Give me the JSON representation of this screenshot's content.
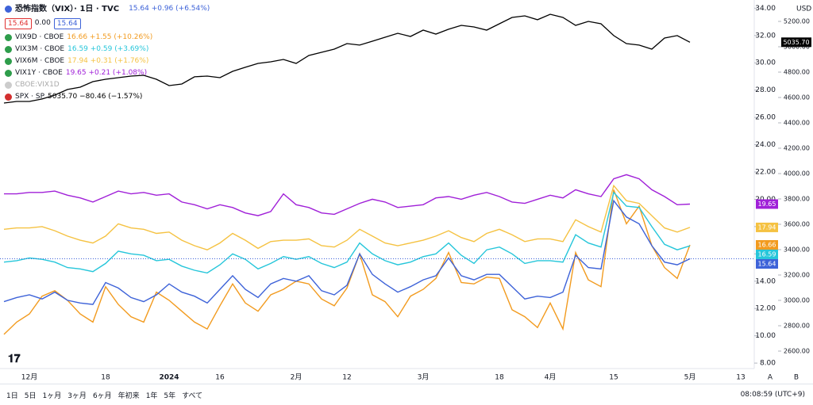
{
  "header": {
    "title": "恐怖指数（VIX）· 1日 · TVC",
    "quote": "15.64 +0.96 (+6.54%)",
    "bid": "15.64",
    "spread": "0.00",
    "ask": "15.64",
    "hidden_series": "CBOE:VIX1D"
  },
  "currency": "USD",
  "axis_buttons": [
    "A",
    "B"
  ],
  "range_buttons": [
    "1日",
    "5日",
    "1ヶ月",
    "3ヶ月",
    "6ヶ月",
    "年初来",
    "1年",
    "5年",
    "すべて"
  ],
  "clock": "08:08:59 (UTC+9)",
  "chart_data": {
    "type": "line",
    "categories": [
      null,
      null,
      "12月",
      null,
      null,
      null,
      null,
      null,
      "18",
      null,
      null,
      null,
      null,
      "2024",
      null,
      null,
      null,
      "16",
      null,
      null,
      null,
      null,
      null,
      "2月",
      null,
      null,
      null,
      "12",
      null,
      null,
      null,
      null,
      null,
      "3月",
      null,
      null,
      null,
      null,
      null,
      "18",
      null,
      null,
      null,
      "4月",
      null,
      null,
      null,
      null,
      "15",
      null,
      null,
      null,
      null,
      null,
      "5月",
      null,
      null,
      null,
      "13"
    ],
    "ylim": [
      7.6,
      34.6
    ],
    "yticks": [
      {
        "value": 8,
        "label": "8.00"
      },
      {
        "value": 10,
        "label": "10.00"
      },
      {
        "value": 12,
        "label": "12.00"
      },
      {
        "value": 14,
        "label": "14.00"
      },
      {
        "value": 16,
        "label": "16.00"
      },
      {
        "value": 18,
        "label": "18.00"
      },
      {
        "value": 20,
        "label": "20.00"
      },
      {
        "value": 22,
        "label": "22.00"
      },
      {
        "value": 24,
        "label": "24.00"
      },
      {
        "value": 26,
        "label": "26.00"
      },
      {
        "value": 28,
        "label": "28.00"
      },
      {
        "value": 30,
        "label": "30.00"
      },
      {
        "value": 32,
        "label": "32.00"
      },
      {
        "value": 34,
        "label": "34.00"
      }
    ],
    "y2lim": [
      2462.5,
      5368.75
    ],
    "y2ticks": [
      {
        "value": 2600,
        "label": "2600.00"
      },
      {
        "value": 2800,
        "label": "2800.00"
      },
      {
        "value": 3000,
        "label": "3000.00"
      },
      {
        "value": 3200,
        "label": "3200.00"
      },
      {
        "value": 3400,
        "label": "3400.00"
      },
      {
        "value": 3600,
        "label": "3600.00"
      },
      {
        "value": 3800,
        "label": "3800.00"
      },
      {
        "value": 4000,
        "label": "4000.00"
      },
      {
        "value": 4200,
        "label": "4200.00"
      },
      {
        "value": 4400,
        "label": "4400.00"
      },
      {
        "value": 4600,
        "label": "4600.00"
      },
      {
        "value": 4800,
        "label": "4800.00"
      },
      {
        "value": 5000,
        "label": "5000.00"
      },
      {
        "value": 5200,
        "label": "5200.00"
      }
    ],
    "series": [
      {
        "color": "#f29b1f",
        "name": "VIX9D · CBOE",
        "legend_value": "16.66 +1.55 (+10.26%)",
        "last_label": "16.66",
        "values": [
          10.1,
          11.0,
          11.6,
          12.9,
          13.3,
          12.6,
          11.6,
          11.0,
          13.6,
          12.3,
          11.4,
          11.0,
          13.2,
          12.6,
          11.8,
          11.0,
          10.5,
          12.2,
          13.8,
          12.4,
          11.8,
          13.0,
          13.4,
          14.0,
          13.8,
          12.7,
          12.2,
          13.5,
          16.0,
          13.0,
          12.5,
          11.4,
          12.9,
          13.4,
          14.2,
          16.1,
          13.9,
          13.8,
          14.3,
          14.2,
          11.9,
          11.4,
          10.6,
          12.4,
          10.5,
          16.1,
          14.1,
          13.6,
          20.7,
          18.2,
          19.5,
          16.6,
          15.0,
          14.2,
          16.66,
          null,
          null,
          null,
          null
        ]
      },
      {
        "color": "#26c6da",
        "name": "VIX3M · CBOE",
        "legend_value": "16.59 +0.59 (+3.69%)",
        "last_label": "16.59",
        "values": [
          15.4,
          15.5,
          15.7,
          15.6,
          15.4,
          15.0,
          14.9,
          14.7,
          15.3,
          16.2,
          16.0,
          15.9,
          15.5,
          15.6,
          15.1,
          14.8,
          14.6,
          15.2,
          16.0,
          15.6,
          14.9,
          15.3,
          15.8,
          15.6,
          15.8,
          15.3,
          15.0,
          15.4,
          16.8,
          16.0,
          15.5,
          15.2,
          15.4,
          15.8,
          16.0,
          16.8,
          15.9,
          15.3,
          16.3,
          16.5,
          16.0,
          15.3,
          15.5,
          15.5,
          15.4,
          17.4,
          16.8,
          16.5,
          20.5,
          19.5,
          19.4,
          18.0,
          16.7,
          16.3,
          16.59,
          null,
          null,
          null,
          null
        ]
      },
      {
        "color": "#f5c242",
        "name": "VIX6M · CBOE",
        "legend_value": "17.94 +0.31 (+1.76%)",
        "last_label": "17.94",
        "values": [
          17.8,
          17.9,
          17.9,
          18.0,
          17.7,
          17.3,
          17.0,
          16.8,
          17.3,
          18.2,
          17.9,
          17.8,
          17.5,
          17.6,
          17.0,
          16.6,
          16.3,
          16.8,
          17.5,
          17.0,
          16.4,
          16.9,
          17.0,
          17.0,
          17.1,
          16.6,
          16.5,
          17.0,
          17.8,
          17.3,
          16.8,
          16.6,
          16.8,
          17.0,
          17.3,
          17.7,
          17.2,
          16.9,
          17.5,
          17.8,
          17.4,
          16.9,
          17.1,
          17.1,
          16.9,
          18.5,
          18.0,
          17.6,
          21.0,
          19.9,
          19.7,
          18.8,
          17.9,
          17.6,
          17.94,
          null,
          null,
          null,
          null
        ]
      },
      {
        "color": "#a020d8",
        "name": "VIX1Y · CBOE",
        "legend_value": "19.65 +0.21 (+1.08%)",
        "last_label": "19.65",
        "values": [
          20.4,
          20.4,
          20.5,
          20.5,
          20.6,
          20.3,
          20.1,
          19.8,
          20.2,
          20.6,
          20.4,
          20.5,
          20.3,
          20.4,
          19.8,
          19.6,
          19.3,
          19.6,
          19.4,
          19.0,
          18.8,
          19.1,
          20.4,
          19.6,
          19.4,
          19.0,
          18.9,
          19.3,
          19.7,
          20.0,
          19.8,
          19.4,
          19.5,
          19.6,
          20.1,
          20.2,
          20.0,
          20.3,
          20.5,
          20.2,
          19.8,
          19.7,
          20.0,
          20.3,
          20.1,
          20.7,
          20.4,
          20.2,
          21.5,
          21.8,
          21.5,
          20.7,
          20.2,
          19.6,
          19.65,
          null,
          null,
          null,
          null
        ]
      },
      {
        "color": "#3d62d8",
        "last_label": "15.64",
        "values": [
          12.5,
          12.8,
          13.0,
          12.7,
          13.2,
          12.6,
          12.4,
          12.3,
          13.9,
          13.5,
          12.8,
          12.5,
          13.0,
          13.8,
          13.2,
          12.9,
          12.4,
          13.4,
          14.4,
          13.4,
          12.8,
          13.8,
          14.2,
          14.0,
          14.4,
          13.3,
          13.0,
          13.7,
          16.0,
          14.5,
          13.8,
          13.2,
          13.6,
          14.1,
          14.4,
          15.7,
          14.4,
          14.1,
          14.5,
          14.5,
          13.6,
          12.7,
          12.9,
          12.8,
          13.2,
          15.9,
          15.0,
          14.9,
          19.9,
          18.7,
          18.2,
          16.6,
          15.4,
          15.2,
          15.64,
          null,
          null,
          null,
          null
        ]
      },
      {
        "color": "#000000",
        "axis": "y2",
        "name": "SPX · SP",
        "legend_value": "5035.70 −80.46 (−1.57%)",
        "last_label": "5035.70",
        "values": [
          4556,
          4569,
          4569,
          4588,
          4619,
          4663,
          4681,
          4725,
          4744,
          4756,
          4769,
          4775,
          4744,
          4694,
          4706,
          4763,
          4769,
          4756,
          4806,
          4838,
          4869,
          4881,
          4900,
          4869,
          4931,
          4956,
          4981,
          5025,
          5013,
          5044,
          5075,
          5106,
          5081,
          5131,
          5100,
          5138,
          5169,
          5156,
          5131,
          5181,
          5231,
          5244,
          5213,
          5256,
          5231,
          5169,
          5200,
          5181,
          5088,
          5025,
          5013,
          4981,
          5069,
          5088,
          5035.7,
          null,
          null,
          null,
          null
        ]
      }
    ]
  }
}
